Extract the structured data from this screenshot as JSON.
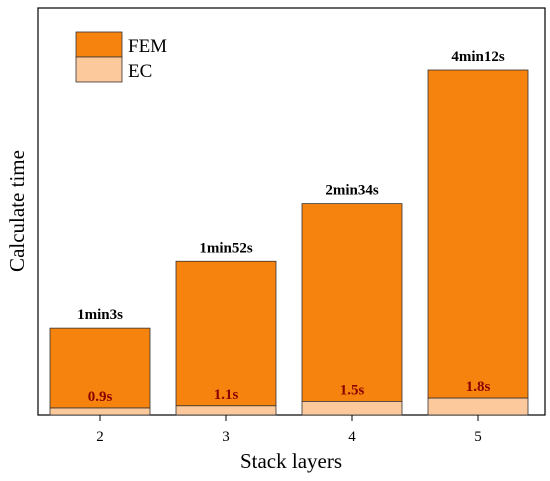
{
  "chart_data": {
    "type": "bar",
    "stacked": true,
    "xlabel": "Stack layers",
    "ylabel": "Calculate time",
    "categories": [
      "2",
      "3",
      "4",
      "5"
    ],
    "series": [
      {
        "name": "EC",
        "values": [
          0.9,
          1.1,
          1.5,
          1.8
        ],
        "color": "#fbc99c"
      },
      {
        "name": "FEM",
        "values": [
          63,
          112,
          154,
          252
        ],
        "color": "#f7830f"
      }
    ],
    "top_labels": [
      "1min3s",
      "1min52s",
      "2min34s",
      "4min12s"
    ],
    "inner_labels": [
      "0.9s",
      "1.1s",
      "1.5s",
      "1.8s"
    ],
    "y_ticks_shown": false,
    "grid": false,
    "legend_position": "top-left",
    "legend": [
      {
        "label": "FEM",
        "color": "#f7830f"
      },
      {
        "label": "EC",
        "color": "#fbc99c"
      }
    ],
    "colors": {
      "fem": "#f7830f",
      "ec": "#fbc99c",
      "inner_label": "#8b0000",
      "axis": "#000000"
    }
  }
}
